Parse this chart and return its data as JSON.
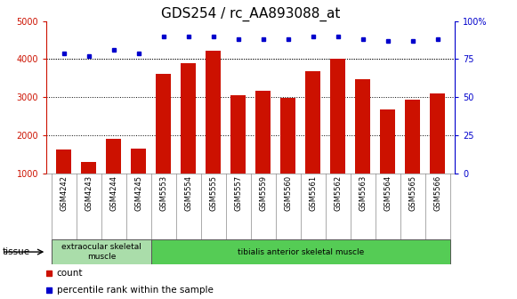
{
  "title": "GDS254 / rc_AA893088_at",
  "categories": [
    "GSM4242",
    "GSM4243",
    "GSM4244",
    "GSM4245",
    "GSM5553",
    "GSM5554",
    "GSM5555",
    "GSM5557",
    "GSM5559",
    "GSM5560",
    "GSM5561",
    "GSM5562",
    "GSM5563",
    "GSM5564",
    "GSM5565",
    "GSM5566"
  ],
  "counts": [
    1620,
    1310,
    1900,
    1660,
    3620,
    3900,
    4220,
    3060,
    3160,
    2990,
    3680,
    4010,
    3460,
    2680,
    2940,
    3100
  ],
  "percentile_ranks": [
    79,
    77,
    81,
    79,
    90,
    90,
    90,
    88,
    88,
    88,
    90,
    90,
    88,
    87,
    87,
    88
  ],
  "bar_color": "#cc1100",
  "dot_color": "#0000cc",
  "ylim_left": [
    1000,
    5000
  ],
  "ylim_right": [
    0,
    100
  ],
  "yticks_left": [
    1000,
    2000,
    3000,
    4000,
    5000
  ],
  "yticks_right": [
    0,
    25,
    50,
    75,
    100
  ],
  "yticklabels_right": [
    "0",
    "25",
    "50",
    "75",
    "100%"
  ],
  "tissue_groups": [
    {
      "label": "extraocular skeletal\nmuscle",
      "start": 0,
      "end": 4,
      "color": "#aaddaa"
    },
    {
      "label": "tibialis anterior skeletal muscle",
      "start": 4,
      "end": 16,
      "color": "#55cc55"
    }
  ],
  "tissue_label": "tissue",
  "legend_count_label": "count",
  "legend_pct_label": "percentile rank within the sample",
  "bg_color": "#ffffff",
  "plot_bg_color": "#ffffff",
  "xtick_bg_color": "#cccccc",
  "grid_color": "#000000",
  "title_fontsize": 11,
  "tick_fontsize": 7,
  "bar_bottom": 1000
}
